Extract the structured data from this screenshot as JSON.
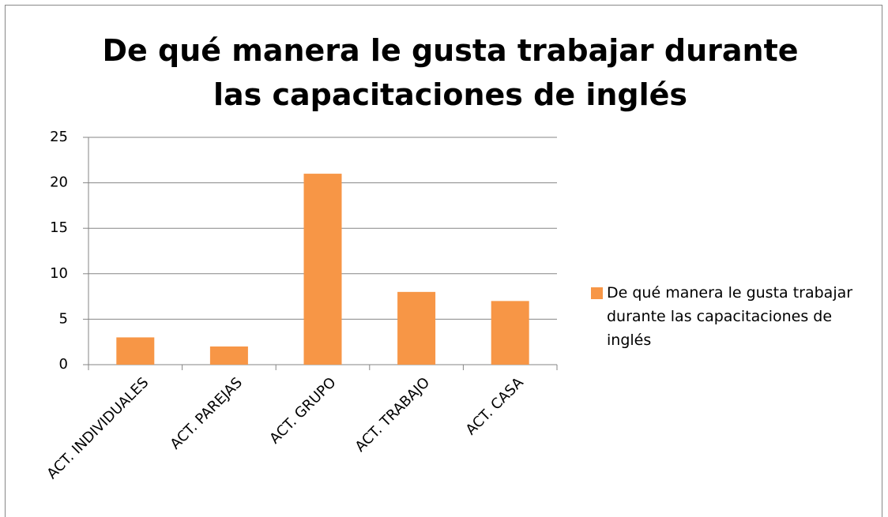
{
  "chart_data": {
    "type": "bar",
    "title": "De qué manera le gusta trabajar durante las capacitaciones de inglés",
    "categories": [
      "ACT. INDIVIDUALES",
      "ACT. PAREJAS",
      "ACT. GRUPO",
      "ACT. TRABAJO",
      "ACT. CASA"
    ],
    "series": [
      {
        "name": "De qué manera le gusta trabajar durante las capacitaciones de inglés",
        "color": "#f79646",
        "values": [
          3,
          2,
          21,
          8,
          7
        ]
      }
    ],
    "ylim": [
      0,
      25
    ],
    "yticks": [
      0,
      5,
      10,
      15,
      20,
      25
    ],
    "grid": true,
    "legend": "right"
  }
}
